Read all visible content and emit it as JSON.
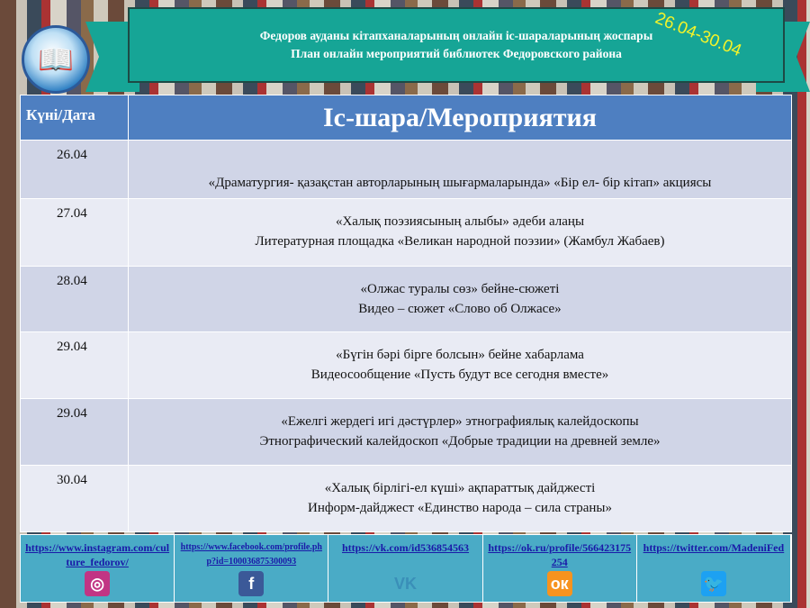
{
  "header": {
    "line1": "Федоров ауданы кітапханаларының онлайн іс-шараларының жоспары",
    "line2": "План онлайн мероприятий библиотек Федоровского района",
    "date_range": "26.04-30.04",
    "logo_icon": "open-book-icon"
  },
  "table": {
    "headers": [
      "Күні/Дата",
      "Іс-шара/Мероприятия"
    ],
    "rows": [
      {
        "date": "26.04",
        "line1": "",
        "line2": "«Драматургия- қазақстан авторларының шығармаларында» «Бір ел- бір кітап» акциясы"
      },
      {
        "date": "27.04",
        "line1": "«Халық поэзиясының алыбы» әдеби алаңы",
        "line2": "Литературная площадка «Великан народной поэзии» (Жамбул Жабаев)"
      },
      {
        "date": "28.04",
        "line1": "«Олжас туралы сөз»  бейне-сюжеті",
        "line2": "Видео – сюжет «Слово об Олжасе»"
      },
      {
        "date": "29.04",
        "line1": "«Бүгін бәрі бірге болсын» бейне хабарлама",
        "line2": "Видеосообщение «Пусть будут все сегодня вместе»"
      },
      {
        "date": "29.04",
        "line1": "«Ежелгі жердегі игі дәстүрлер» этнографиялық калейдоскопы",
        "line2": "Этнографический калейдоскоп «Добрые традиции на древней земле»"
      },
      {
        "date": "30.04",
        "line1": "«Халық бірлігі-ел күші» ақпараттық дайджесті",
        "line2": "Информ-дайджест «Единство народа – сила страны»"
      }
    ]
  },
  "links": [
    {
      "url": "https://www.instagram.com/culture_fedorov/",
      "icon": "instagram-icon",
      "color": "#c13584"
    },
    {
      "url": "https://www.facebook.com/profile.php?id=100036875300093",
      "icon": "facebook-icon",
      "color": "#3b5998"
    },
    {
      "url": "https://vk.com/id536854563",
      "icon": "vk-icon",
      "color": "#3a8fb8"
    },
    {
      "url": "https://ok.ru/profile/566423175254",
      "icon": "odnoklassniki-icon",
      "color": "#f7931e"
    },
    {
      "url": "https://twitter.com/MadeniFed",
      "icon": "twitter-icon",
      "color": "#1da1f2"
    }
  ]
}
